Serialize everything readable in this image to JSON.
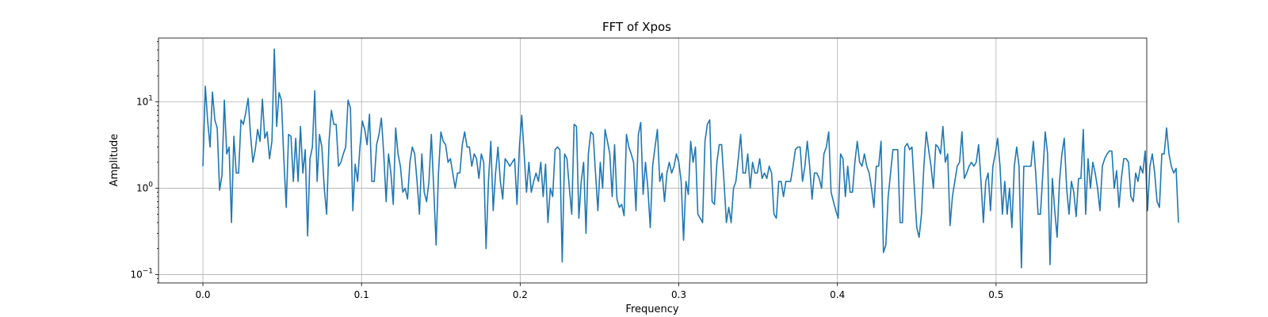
{
  "chart_data": {
    "type": "line",
    "title": "FFT of Xpos",
    "xlabel": "Frequency",
    "ylabel": "Amplitude",
    "yscale": "log",
    "xlim": [
      -0.028,
      0.595
    ],
    "ylim": [
      0.08,
      55
    ],
    "grid": true,
    "line_color": "#1f77b4",
    "xticks": [
      {
        "value": 0.0,
        "label": "0.0"
      },
      {
        "value": 0.1,
        "label": "0.1"
      },
      {
        "value": 0.2,
        "label": "0.2"
      },
      {
        "value": 0.3,
        "label": "0.3"
      },
      {
        "value": 0.4,
        "label": "0.4"
      },
      {
        "value": 0.5,
        "label": "0.5"
      }
    ],
    "yticks": [
      {
        "value": 0.1,
        "base": "10",
        "exp": "−1"
      },
      {
        "value": 1,
        "base": "10",
        "exp": "0"
      },
      {
        "value": 10,
        "base": "10",
        "exp": "1"
      }
    ],
    "x_start": 0.0,
    "x_step": 0.0015,
    "series": [
      {
        "values": [
          1.8,
          15.2,
          6.0,
          3.0,
          13.0,
          6.2,
          5.0,
          0.95,
          1.4,
          10.5,
          2.5,
          3.0,
          0.4,
          4.0,
          1.5,
          1.5,
          6.2,
          5.5,
          7.5,
          11.0,
          4.2,
          2.0,
          2.8,
          4.8,
          3.5,
          10.8,
          3.8,
          4.5,
          2.2,
          3.5,
          41.0,
          5.2,
          12.8,
          10.5,
          2.2,
          0.6,
          4.2,
          4.0,
          1.2,
          3.8,
          1.2,
          5.2,
          1.5,
          2.8,
          0.28,
          2.2,
          3.0,
          13.5,
          1.2,
          4.2,
          3.0,
          1.0,
          0.5,
          3.5,
          8.0,
          5.5,
          5.5,
          1.8,
          2.0,
          2.5,
          3.0,
          10.5,
          8.5,
          0.55,
          1.9,
          1.2,
          3.0,
          6.0,
          4.8,
          3.2,
          7.2,
          1.2,
          1.2,
          3.2,
          4.2,
          6.5,
          2.5,
          0.7,
          2.5,
          1.5,
          0.65,
          5.0,
          2.5,
          1.8,
          0.9,
          1.0,
          0.75,
          2.0,
          3.0,
          2.5,
          1.2,
          0.5,
          2.5,
          0.9,
          0.7,
          1.2,
          4.2,
          1.0,
          0.22,
          1.5,
          4.5,
          3.5,
          3.2,
          2.0,
          2.2,
          1.5,
          1.0,
          1.5,
          1.5,
          3.2,
          4.5,
          3.0,
          3.0,
          1.8,
          2.5,
          2.2,
          1.3,
          2.5,
          2.0,
          0.2,
          1.2,
          3.5,
          0.55,
          1.5,
          3.0,
          1.2,
          0.75,
          2.2,
          2.0,
          1.8,
          2.0,
          2.2,
          0.65,
          3.0,
          7.0,
          2.5,
          0.9,
          2.0,
          0.9,
          1.2,
          1.5,
          1.2,
          2.0,
          0.8,
          1.9,
          0.4,
          1.0,
          0.8,
          2.8,
          3.0,
          2.8,
          0.14,
          2.5,
          2.2,
          1.0,
          0.5,
          5.5,
          5.2,
          0.45,
          1.2,
          2.0,
          0.3,
          2.5,
          4.5,
          4.2,
          1.5,
          0.55,
          2.0,
          1.0,
          4.8,
          3.5,
          2.5,
          0.8,
          3.2,
          0.75,
          0.6,
          0.65,
          0.48,
          4.2,
          3.0,
          2.5,
          2.0,
          0.55,
          4.2,
          5.8,
          0.85,
          2.0,
          1.0,
          0.35,
          1.8,
          3.0,
          4.8,
          1.2,
          1.5,
          0.7,
          1.5,
          2.0,
          1.5,
          1.8,
          2.5,
          2.0,
          1.2,
          0.25,
          1.2,
          0.85,
          3.5,
          2.0,
          3.0,
          0.5,
          0.45,
          0.4,
          3.5,
          5.5,
          6.2,
          0.7,
          0.65,
          2.0,
          3.2,
          3.2,
          1.2,
          0.4,
          0.6,
          0.4,
          1.0,
          1.2,
          2.2,
          4.2,
          1.5,
          1.5,
          2.5,
          1.0,
          2.0,
          1.5,
          1.5,
          2.2,
          1.3,
          1.5,
          1.3,
          1.8,
          1.5,
          0.5,
          0.45,
          1.2,
          1.2,
          0.8,
          1.2,
          1.2,
          1.2,
          1.8,
          2.8,
          3.0,
          3.0,
          1.2,
          1.8,
          3.5,
          1.8,
          0.75,
          1.5,
          1.5,
          1.3,
          1.0,
          2.5,
          3.0,
          4.5,
          0.9,
          0.7,
          0.55,
          0.45,
          2.5,
          2.2,
          0.8,
          1.8,
          0.9,
          0.9,
          2.0,
          3.5,
          2.0,
          1.8,
          2.5,
          1.8,
          1.5,
          1.0,
          0.6,
          1.8,
          1.8,
          3.5,
          0.18,
          0.22,
          0.8,
          1.5,
          2.8,
          2.8,
          2.8,
          0.4,
          0.4,
          3.0,
          3.3,
          2.8,
          3.0,
          1.0,
          0.35,
          0.27,
          0.5,
          1.8,
          4.5,
          2.8,
          1.8,
          1.0,
          3.2,
          3.0,
          2.5,
          5.2,
          2.0,
          2.5,
          0.37,
          0.8,
          1.2,
          1.8,
          2.0,
          4.5,
          1.3,
          1.5,
          1.8,
          2.0,
          1.8,
          2.0,
          3.2,
          1.2,
          0.4,
          1.2,
          1.5,
          0.55,
          1.8,
          2.5,
          3.8,
          1.8,
          0.5,
          1.2,
          0.5,
          1.0,
          0.35,
          1.8,
          3.0,
          1.8,
          0.12,
          1.8,
          1.8,
          1.8,
          1.8,
          3.5,
          1.5,
          0.5,
          0.5,
          1.5,
          4.5,
          2.5,
          0.13,
          1.3,
          0.55,
          0.27,
          1.2,
          2.5,
          3.8,
          1.0,
          0.5,
          1.2,
          0.9,
          0.47,
          1.3,
          1.3,
          4.8,
          0.5,
          2.2,
          1.0,
          2.0,
          1.5,
          1.0,
          0.55,
          1.8,
          2.2,
          2.5,
          2.7,
          2.7,
          1.0,
          1.6,
          0.6,
          1.3,
          2.2,
          2.2,
          2.0,
          0.8,
          0.7,
          1.5,
          1.2,
          1.8,
          1.5,
          2.7,
          0.55,
          1.8,
          2.5,
          1.5,
          0.7,
          0.6,
          2.5,
          2.5,
          5.0,
          2.5,
          1.8,
          1.5,
          1.7,
          0.4
        ]
      }
    ]
  }
}
